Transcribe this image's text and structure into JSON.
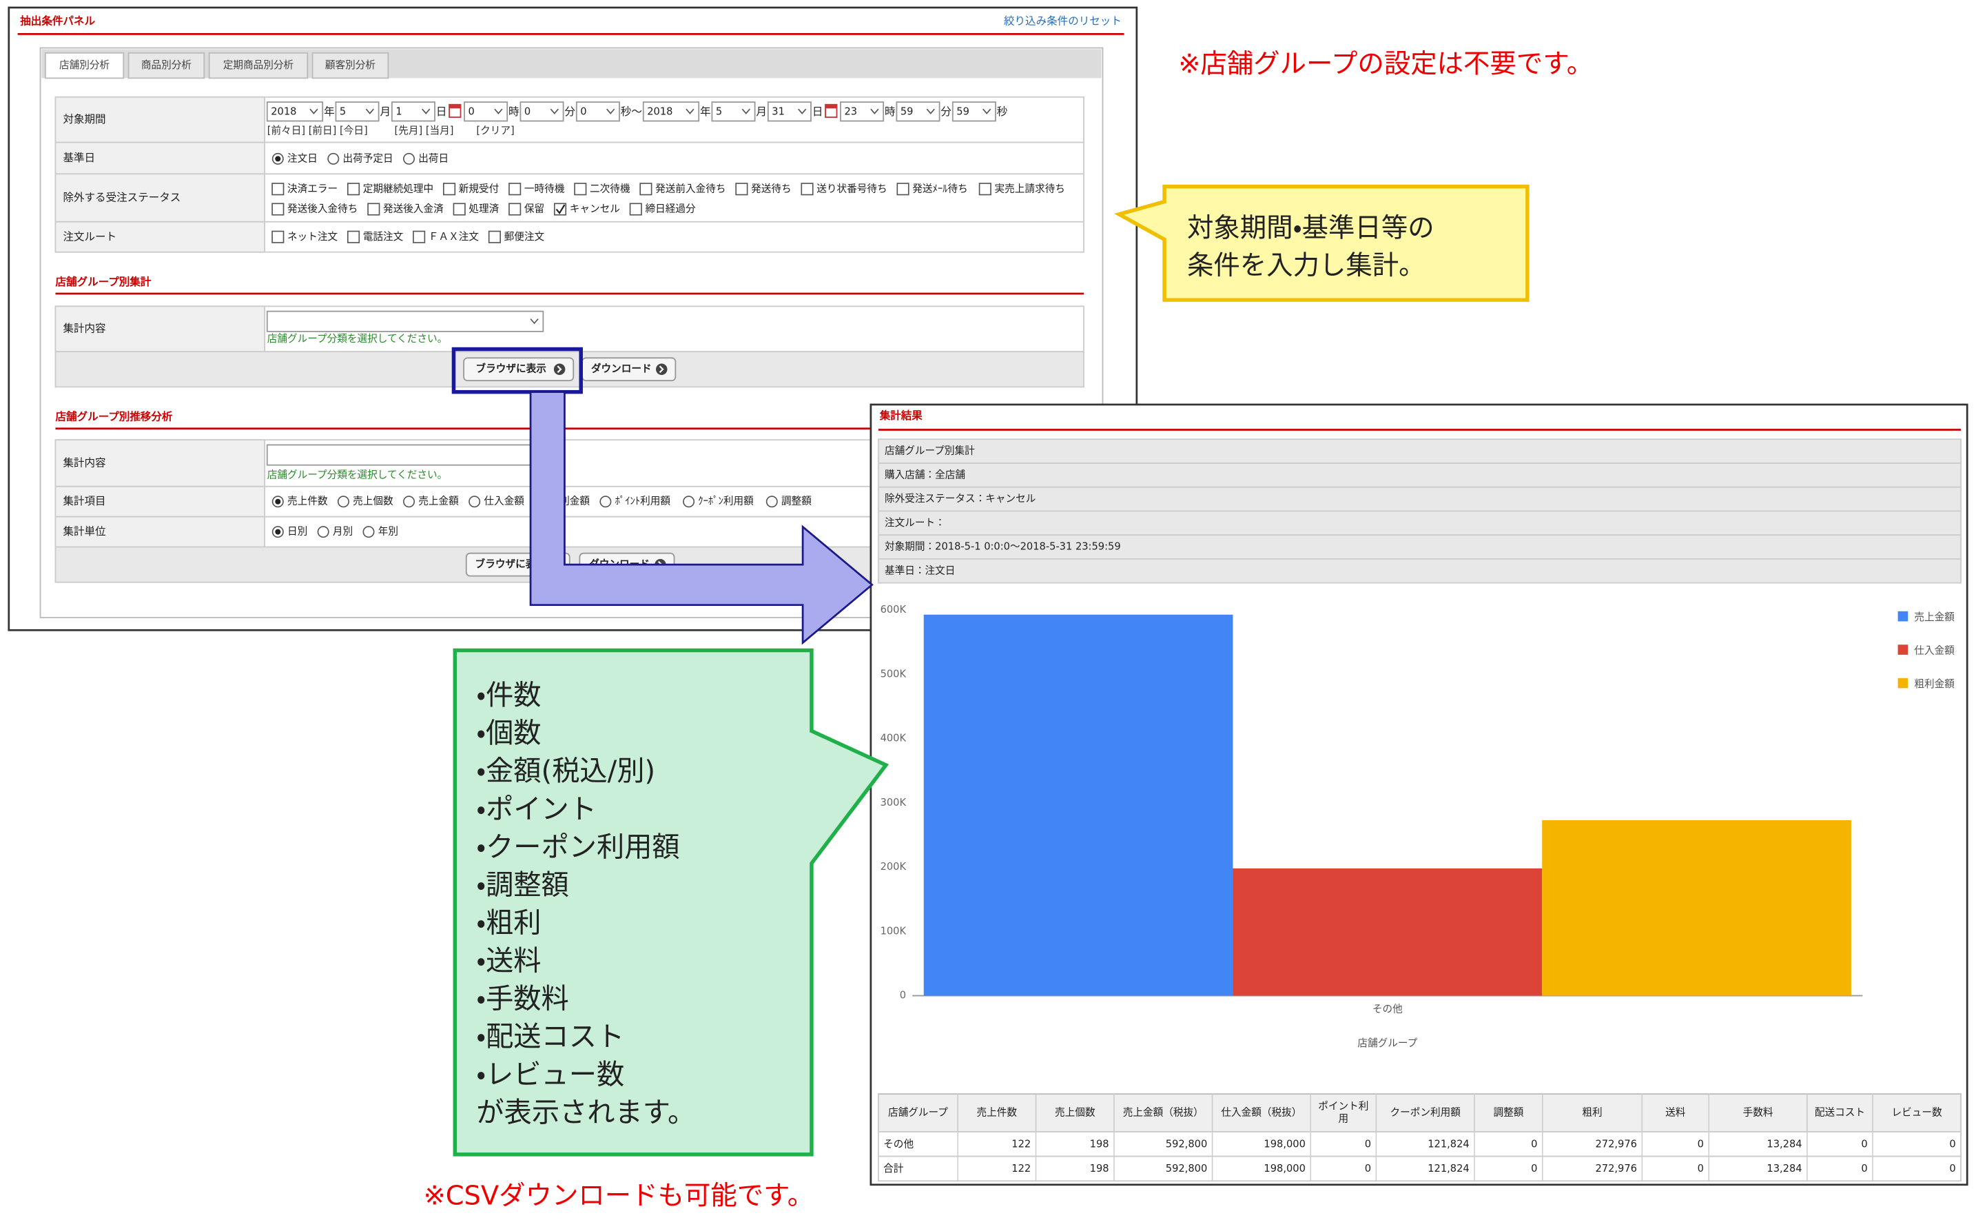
{
  "panel": {
    "title": "抽出条件パネル",
    "reset_link": "絞り込み条件のリセット",
    "tabs": [
      "店舗別分析",
      "商品別分析",
      "定期商品別分析",
      "顧客別分析"
    ],
    "conditions": {
      "period": {
        "label": "対象期間",
        "fields": [
          {
            "value": "2018",
            "unit": "年"
          },
          {
            "value": "5",
            "unit": "月"
          },
          {
            "value": "1",
            "unit": "日"
          },
          {
            "value": "0",
            "unit": "時"
          },
          {
            "value": "0",
            "unit": "分"
          },
          {
            "value": "0",
            "unit": "秒～"
          },
          {
            "value": "2018",
            "unit": "年"
          },
          {
            "value": "5",
            "unit": "月"
          },
          {
            "value": "31",
            "unit": "日"
          },
          {
            "value": "23",
            "unit": "時"
          },
          {
            "value": "59",
            "unit": "分"
          },
          {
            "value": "59",
            "unit": "秒"
          }
        ],
        "shortcuts": [
          "[前々日] [前日] [今日]",
          "[先月] [当月]",
          "[クリア]"
        ]
      },
      "base_date": {
        "label": "基準日",
        "options": [
          "注文日",
          "出荷予定日",
          "出荷日"
        ],
        "selected": 0
      },
      "excluded_status": {
        "label": "除外する受注ステータス",
        "options": [
          "決済エラー",
          "定期継続処理中",
          "新規受付",
          "一時待機",
          "二次待機",
          "発送前入金待ち",
          "発送待ち",
          "送り状番号待ち",
          "発送ﾒｰﾙ待ち",
          "実売上請求待ち",
          "発送後入金待ち",
          "発送後入金済",
          "処理済",
          "保留",
          "キャンセル",
          "締日経過分"
        ],
        "checked": [
          14
        ]
      },
      "order_route": {
        "label": "注文ルート",
        "options": [
          "ネット注文",
          "電話注文",
          "ＦＡＸ注文",
          "郵便注文"
        ]
      }
    },
    "group_summary": {
      "title": "店舗グループ別集計",
      "content_label": "集計内容",
      "hint": "店舗グループ分類を選択してください。",
      "buttons": [
        "ブラウザに表示",
        "ダウンロード"
      ]
    },
    "group_trend": {
      "title": "店舗グループ別推移分析",
      "content_label": "集計内容",
      "hint": "店舗グループ分類を選択してください。",
      "items_label": "集計項目",
      "items": [
        "売上件数",
        "売上個数",
        "売上金額",
        "仕入金額",
        "粗利金額",
        "ﾎﾟｲﾝﾄ利用額",
        "ｸｰﾎﾟﾝ利用額",
        "調整額"
      ],
      "items_selected": 0,
      "unit_label": "集計単位",
      "units": [
        "日別",
        "月別",
        "年別"
      ],
      "units_selected": 0,
      "buttons": [
        "ブラウザに表示",
        "ダウンロード"
      ]
    }
  },
  "notes": {
    "store_group": "※店舗グループの設定は不要です。",
    "condition_callout": [
      "対象期間・基準日等の",
      "条件を入力し集計。"
    ],
    "items_callout": [
      "・件数",
      "・個数",
      "・金額(税込/別)",
      "・ポイント",
      "・クーポン利用額",
      "・調整額",
      "・粗利",
      "・送料",
      "・手数料",
      "・配送コスト",
      "・レビュー数",
      "が表示されます。"
    ],
    "csv": "※CSVダウンロードも可能です。"
  },
  "result": {
    "title": "集計結果",
    "info": [
      "店舗グループ別集計",
      "購入店舗：全店舗",
      "除外受注ステータス：キャンセル",
      "注文ルート：",
      "対象期間：2018-5-1 0:0:0～2018-5-31 23:59:59",
      "基準日：注文日"
    ],
    "chart": {
      "type": "bar",
      "categories": [
        "その他"
      ],
      "x_label": "店舗グループ",
      "series": [
        {
          "name": "売上金額",
          "color": "#4285f4",
          "values": [
            592800
          ]
        },
        {
          "name": "仕入金額",
          "color": "#db4437",
          "values": [
            198000
          ]
        },
        {
          "name": "粗利金額",
          "color": "#f4b400",
          "values": [
            272976
          ]
        }
      ],
      "ylim": [
        0,
        600000
      ],
      "yticks": [
        0,
        {
          "value": 100000,
          "label": "100K"
        },
        {
          "value": 200000,
          "label": "200K"
        },
        {
          "value": 300000,
          "label": "300K"
        },
        {
          "value": 400000,
          "label": "400K"
        },
        {
          "value": 500000,
          "label": "500K"
        },
        {
          "value": 600000,
          "label": "600K"
        }
      ],
      "grid": false
    },
    "table": {
      "headers": [
        "店舗グループ",
        "売上件数",
        "売上個数",
        "売上金額（税抜）",
        "仕入金額（税抜）",
        "ポイント利用",
        "クーポン利用額",
        "調整額",
        "粗利",
        "送料",
        "手数料",
        "配送コスト",
        "レビュー数"
      ],
      "rows": [
        [
          "その他",
          "122",
          "198",
          "592,800",
          "198,000",
          "0",
          "121,824",
          "0",
          "272,976",
          "0",
          "13,284",
          "0",
          "0"
        ],
        [
          "合計",
          "122",
          "198",
          "592,800",
          "198,000",
          "0",
          "121,824",
          "0",
          "272,976",
          "0",
          "13,284",
          "0",
          "0"
        ]
      ]
    }
  }
}
